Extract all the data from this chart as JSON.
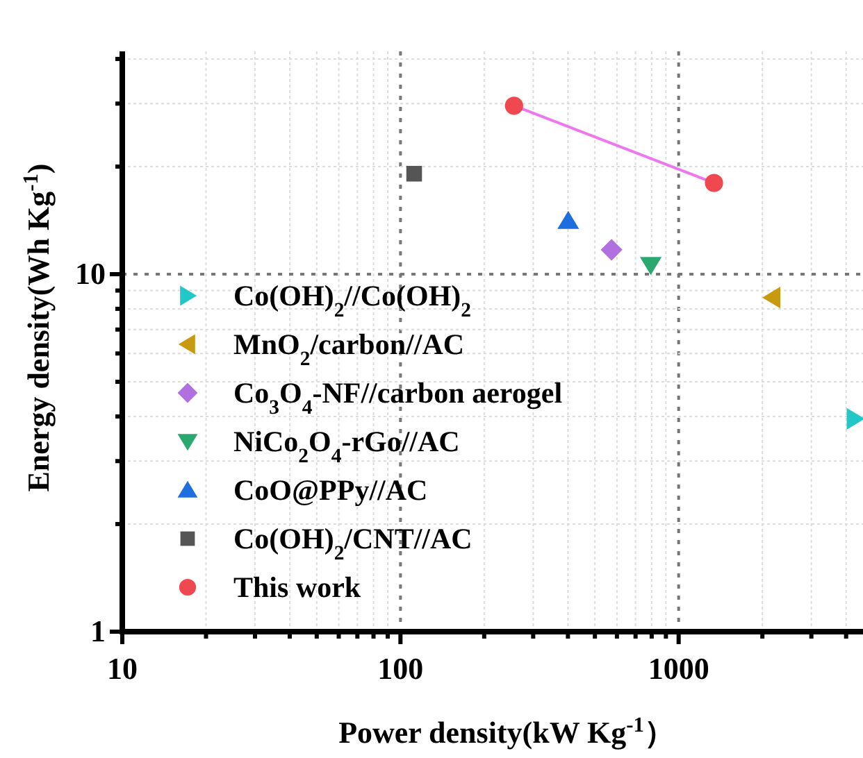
{
  "chart_data": {
    "type": "scatter",
    "xlabel": "Power density(kW Kg$^{-1}$）",
    "ylabel": "Energy density(Wh Kg$^{-1}$)",
    "log": "xy",
    "grid": true,
    "legend": "bottom left",
    "xlim": [
      10,
      4600
    ],
    "ylim": [
      1,
      42
    ],
    "xticks": [
      10,
      {
        "value": 20,
        "label": null
      },
      {
        "value": 30,
        "label": null
      },
      {
        "value": 40,
        "label": null
      },
      {
        "value": 50,
        "label": null
      },
      {
        "value": 60,
        "label": null
      },
      {
        "value": 70,
        "label": null
      },
      {
        "value": 80,
        "label": null
      },
      {
        "value": 90,
        "label": null
      },
      100,
      {
        "value": 200,
        "label": null
      },
      {
        "value": 300,
        "label": null
      },
      {
        "value": 400,
        "label": null
      },
      {
        "value": 500,
        "label": null
      },
      {
        "value": 600,
        "label": null
      },
      {
        "value": 700,
        "label": null
      },
      {
        "value": 800,
        "label": null
      },
      {
        "value": 900,
        "label": null
      },
      1000,
      {
        "value": 2000,
        "label": null
      },
      {
        "value": 3000,
        "label": null
      },
      {
        "value": 4000,
        "label": null
      }
    ],
    "yticks": [
      1,
      {
        "value": 2,
        "label": null
      },
      {
        "value": 3,
        "label": null
      },
      {
        "value": 4,
        "label": null
      },
      {
        "value": 5,
        "label": null
      },
      {
        "value": 6,
        "label": null
      },
      {
        "value": 7,
        "label": null
      },
      {
        "value": 8,
        "label": null
      },
      {
        "value": 9,
        "label": null
      },
      10,
      {
        "value": 20,
        "label": null
      },
      {
        "value": 30,
        "label": null
      },
      {
        "value": 40,
        "label": null
      }
    ],
    "series": [
      {
        "name": "Co(OH)$_{2}$//Co(OH)$_{2}$",
        "color": "#22c8c8",
        "marker": "triangle-right",
        "x": [
          4300
        ],
        "values": [
          3.94
        ]
      },
      {
        "name": "MnO$_{2}$/carbon//AC",
        "color": "#c89a10",
        "marker": "triangle-left",
        "x": [
          2170
        ],
        "values": [
          8.6
        ]
      },
      {
        "name": "Co$_{3}$O$_{4}$-NF//carbon aerogel",
        "color": "#b070e0",
        "marker": "diamond",
        "x": [
          574
        ],
        "values": [
          11.7
        ]
      },
      {
        "name": "NiCo$_{2}$O$_{4}$-rGo//AC",
        "color": "#2aa870",
        "marker": "triangle-down",
        "x": [
          794
        ],
        "values": [
          10.6
        ]
      },
      {
        "name": "CoO@PPy//AC",
        "color": "#1e6ee0",
        "marker": "triangle",
        "x": [
          401
        ],
        "values": [
          14.1
        ]
      },
      {
        "name": "Co(OH)$_{2}$/CNT//AC",
        "color": "#555555",
        "marker": "square",
        "x": [
          112
        ],
        "values": [
          19.1
        ]
      },
      {
        "type": "line",
        "color": "#ee77ee",
        "marker": "none",
        "x": [
          256,
          1340
        ],
        "values": [
          29.6,
          18.0
        ]
      },
      {
        "name": "This work",
        "color": "#f04850",
        "marker": "circle",
        "x": [
          256,
          1340
        ],
        "values": [
          29.6,
          18.0
        ]
      }
    ]
  }
}
